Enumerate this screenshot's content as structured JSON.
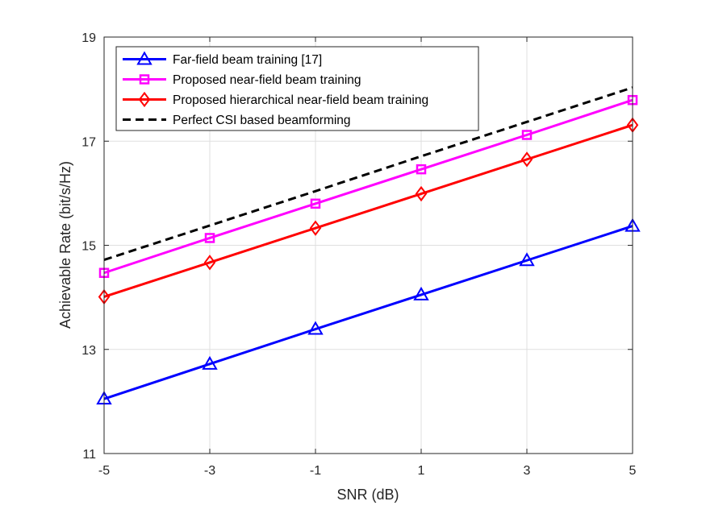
{
  "chart_data": {
    "type": "line",
    "xlabel": "SNR (dB)",
    "ylabel": "Achievable Rate (bit/s/Hz)",
    "xlim": [
      -5,
      5
    ],
    "ylim": [
      11,
      19
    ],
    "xticks": [
      -5,
      -3,
      -1,
      1,
      3,
      5
    ],
    "yticks": [
      11,
      13,
      15,
      17,
      19
    ],
    "x_tick_labels": [
      "-5",
      "-3",
      "-1",
      "1",
      "3",
      "5"
    ],
    "y_tick_labels": [
      "11",
      "13",
      "15",
      "17",
      "19"
    ],
    "grid": true,
    "legend_position": "top-left",
    "x": [
      -5,
      -3,
      -1,
      1,
      3,
      5
    ],
    "series": [
      {
        "name": "Far-field beam training [17]",
        "color": "#0000ff",
        "marker": "triangle",
        "dash": "solid",
        "values": [
          12.05,
          12.72,
          13.39,
          14.05,
          14.71,
          15.37
        ]
      },
      {
        "name": "Proposed near-field beam training",
        "color": "#ff00ff",
        "marker": "square",
        "dash": "solid",
        "values": [
          14.47,
          15.14,
          15.8,
          16.46,
          17.12,
          17.79
        ]
      },
      {
        "name": "Proposed hierarchical near-field beam training",
        "color": "#ff0000",
        "marker": "diamond",
        "dash": "solid",
        "values": [
          14.01,
          14.67,
          15.33,
          15.99,
          16.65,
          17.31
        ]
      },
      {
        "name": "Perfect CSI based beamforming",
        "color": "#000000",
        "marker": "none",
        "dash": "dashed",
        "values": [
          14.72,
          15.38,
          16.04,
          16.71,
          17.37,
          18.03
        ]
      }
    ]
  }
}
